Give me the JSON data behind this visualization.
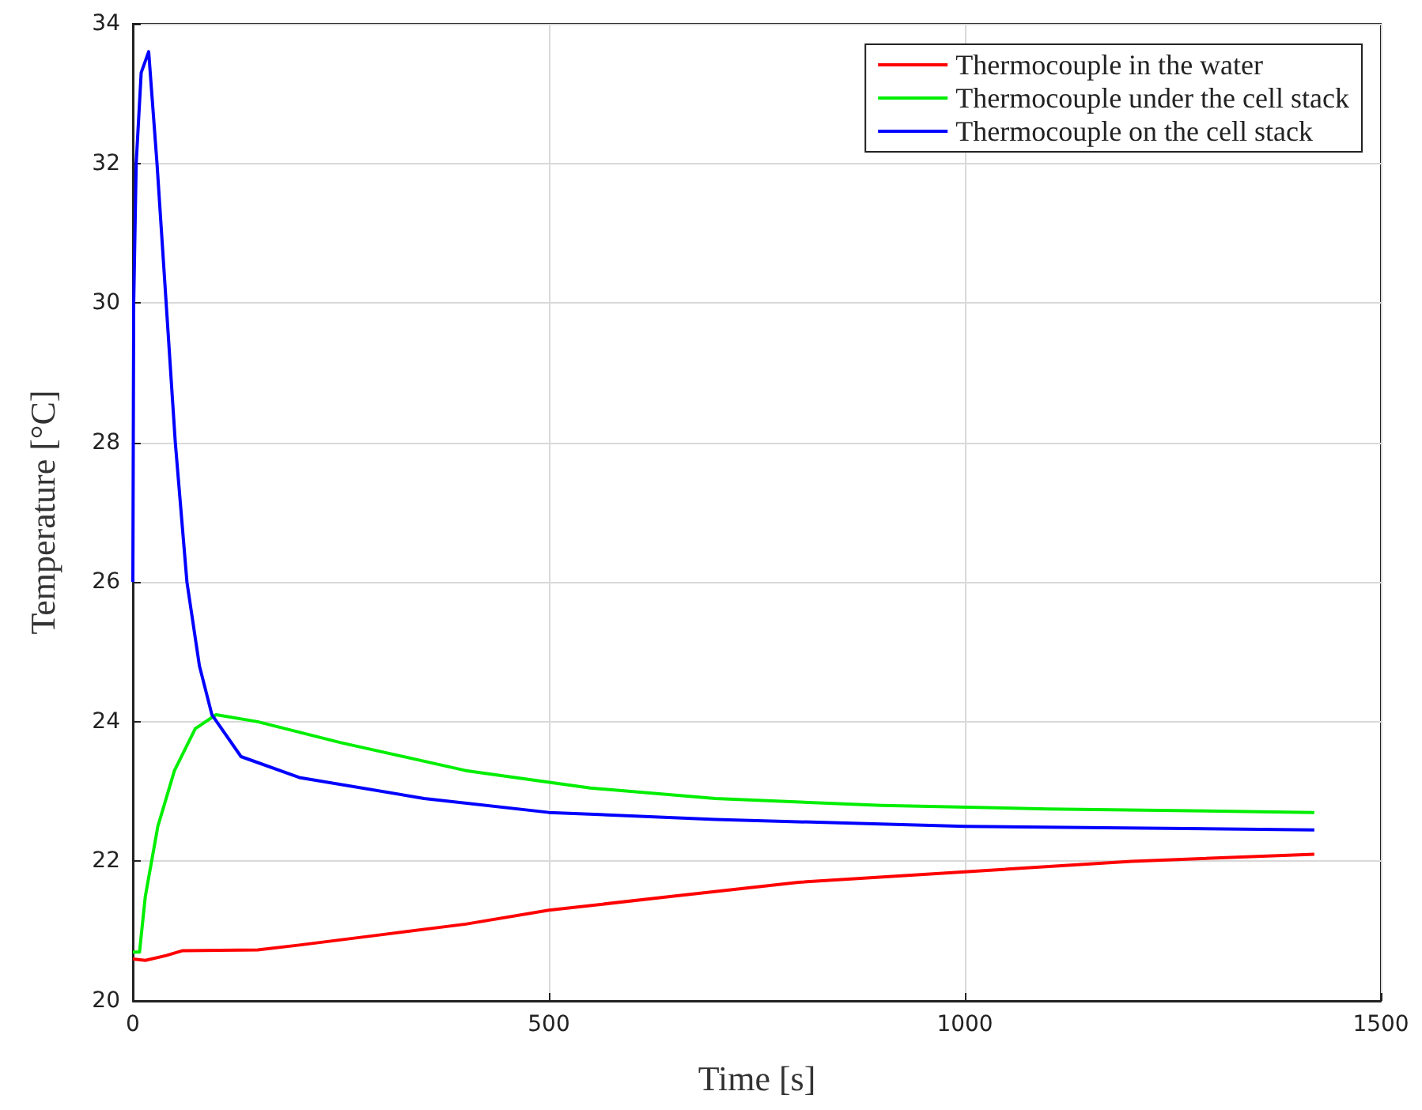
{
  "chart_data": {
    "type": "line",
    "xlabel": "Time [s]",
    "ylabel": "Temperature [°C]",
    "xlim": [
      0,
      1500
    ],
    "xticks": [
      0,
      500,
      1000,
      1500
    ],
    "ylim": [
      20,
      34
    ],
    "yticks": [
      20,
      22,
      24,
      26,
      28,
      30,
      32,
      34
    ],
    "grid": true,
    "legend": "top right",
    "marker": "none",
    "line_style": "solid",
    "series": [
      {
        "name": "Thermocouple in the water",
        "color": "#ff0000",
        "x": [
          0,
          15,
          40,
          60,
          150,
          200,
          300,
          400,
          500,
          650,
          800,
          1000,
          1200,
          1420
        ],
        "values": [
          20.6,
          20.58,
          20.65,
          20.72,
          20.73,
          20.8,
          20.95,
          21.1,
          21.3,
          21.5,
          21.7,
          21.85,
          22.0,
          22.1
        ]
      },
      {
        "name": "Thermocouple under the cell stack",
        "color": "#00ee00",
        "x": [
          0,
          8,
          15,
          30,
          50,
          75,
          100,
          150,
          250,
          400,
          550,
          700,
          900,
          1100,
          1420
        ],
        "values": [
          20.7,
          20.7,
          21.5,
          22.5,
          23.3,
          23.9,
          24.1,
          24.0,
          23.7,
          23.3,
          23.05,
          22.9,
          22.8,
          22.75,
          22.7
        ]
      },
      {
        "name": "Thermocouple on the cell stack",
        "color": "#0000ff",
        "x": [
          0,
          1,
          4,
          10,
          19,
          29,
          40,
          51,
          65,
          80,
          95,
          130,
          200,
          350,
          500,
          700,
          1000,
          1420
        ],
        "values": [
          26,
          30,
          32,
          33.3,
          33.6,
          32,
          30,
          28,
          26,
          24.8,
          24.1,
          23.5,
          23.2,
          22.9,
          22.7,
          22.6,
          22.5,
          22.45
        ]
      }
    ]
  }
}
